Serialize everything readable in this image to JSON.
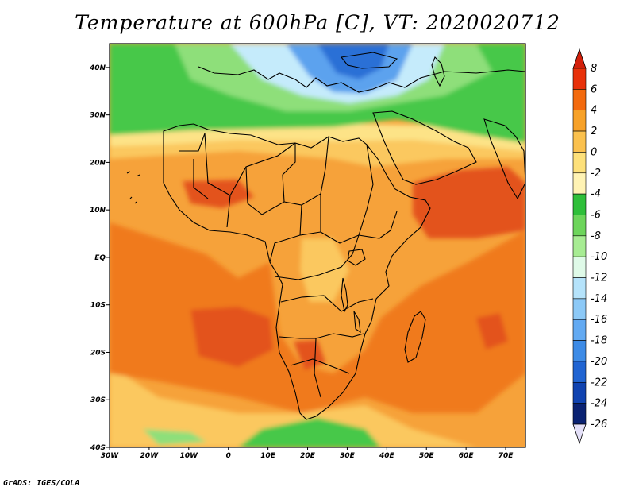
{
  "title": "Temperature at 600hPa [C], VT: 2020020712",
  "credit": "GrADS: IGES/COLA",
  "lon_labels": [
    "30W",
    "20W",
    "10W",
    "0",
    "10E",
    "20E",
    "30E",
    "40E",
    "50E",
    "60E",
    "70E"
  ],
  "lat_labels": [
    "40N",
    "30N",
    "20N",
    "10N",
    "EQ",
    "10S",
    "20S",
    "30S",
    "40S"
  ],
  "colorbar": {
    "labels": [
      "8",
      "6",
      "4",
      "2",
      "0",
      "-2",
      "-4",
      "-6",
      "-8",
      "-10",
      "-12",
      "-14",
      "-16",
      "-18",
      "-20",
      "-22",
      "-24",
      "-26"
    ],
    "colors": [
      "#e8310a",
      "#f36a0e",
      "#f7a128",
      "#fbc14e",
      "#fde07a",
      "#fff3b4",
      "#2fbf3a",
      "#6dd55b",
      "#a7ec93",
      "#dffae8",
      "#b5e3fb",
      "#8cc9f7",
      "#63aaf2",
      "#3d8be6",
      "#2064d2",
      "#1043b0",
      "#0a2272"
    ],
    "top_arrow_color": "#d3200b",
    "bottom_arrow_color": "#e4e0f8"
  },
  "colors": {
    "ocean_base": "#f6a23a",
    "land_base": "#f8aa3d",
    "hot": "#f07a1c",
    "very_hot": "#e3521a",
    "warm_pale": "#fbc85e",
    "cool_pale": "#fde387",
    "green": "#47c84a",
    "light_green": "#8edf7a",
    "pale_blue": "#c5ebfb",
    "blue": "#5ba2ee",
    "deep_blue": "#2a6fd6",
    "coast": "#000000"
  }
}
